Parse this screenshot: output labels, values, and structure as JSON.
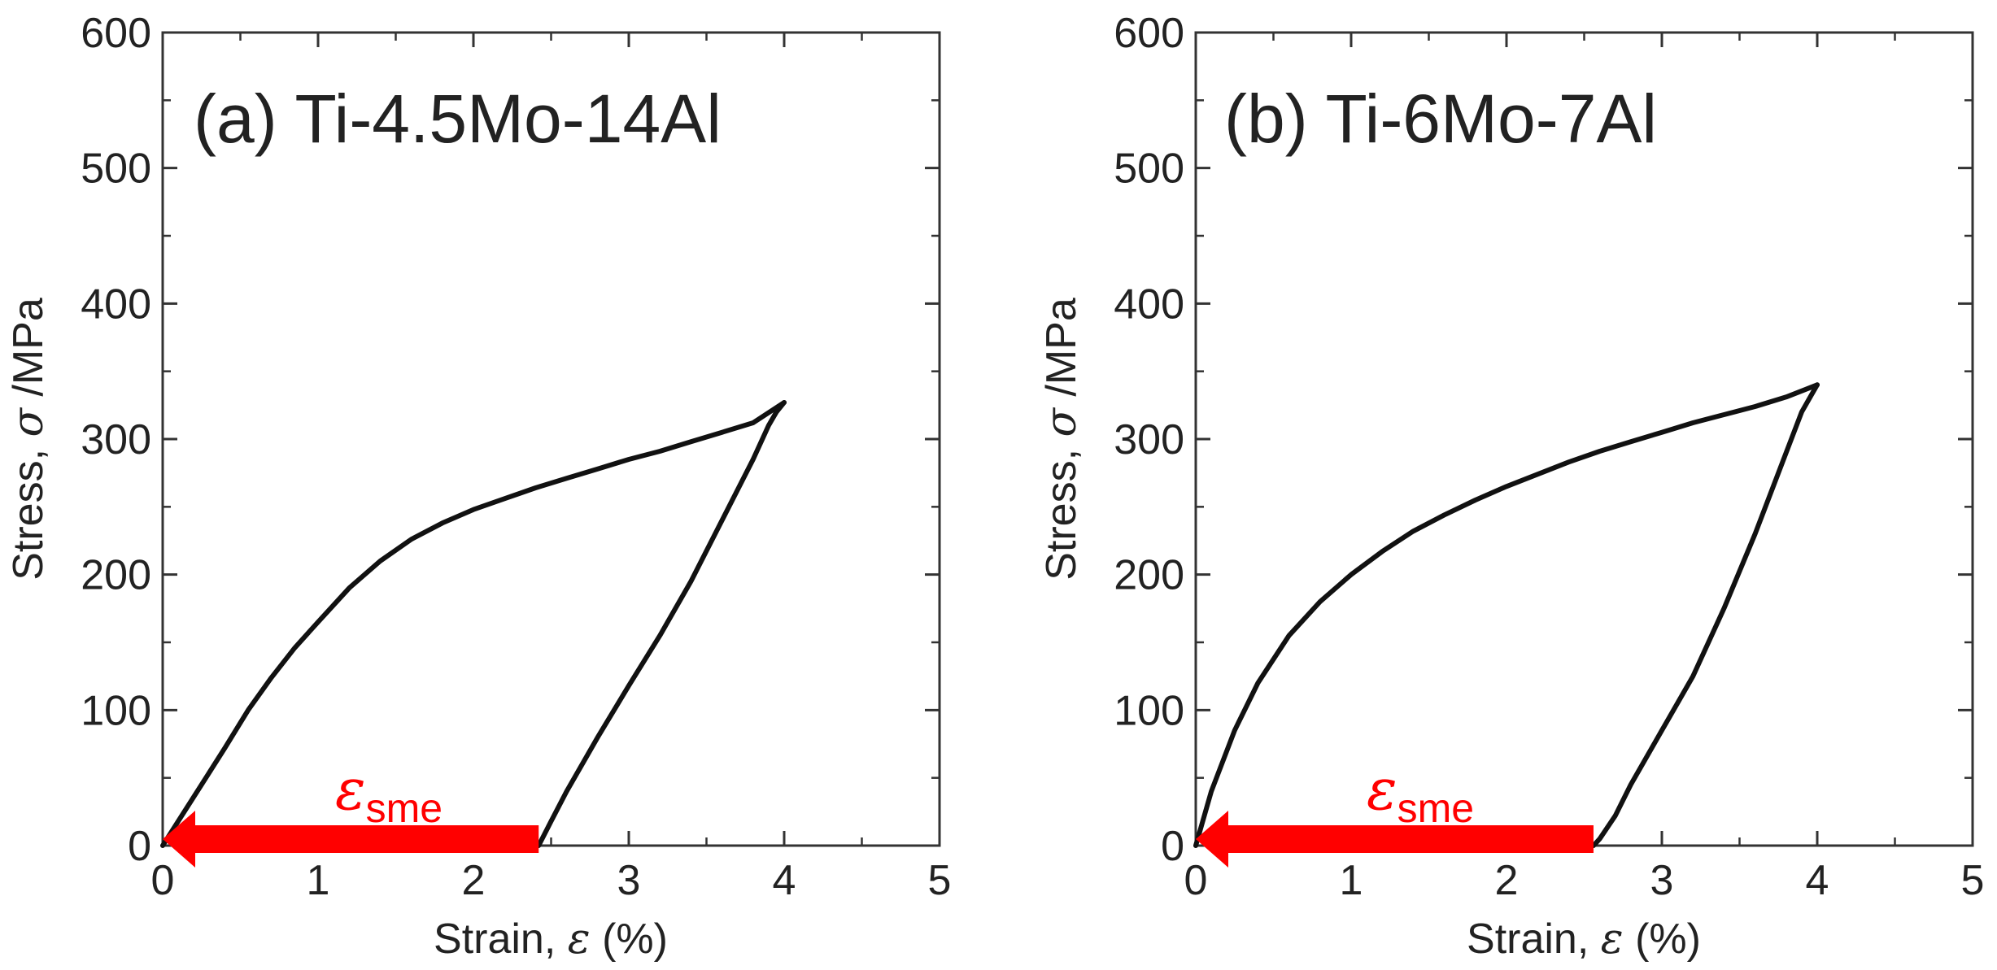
{
  "chart_data": [
    {
      "type": "line",
      "title": "(a) Ti-4.5Mo-14Al",
      "xlabel_prefix": "Strain, ",
      "xlabel_symbol": "ε",
      "xlabel_suffix": " (%)",
      "ylabel_prefix": "Stress, ",
      "ylabel_symbol": "σ",
      "ylabel_suffix": " /MPa",
      "xlim": [
        0,
        5
      ],
      "ylim": [
        0,
        600
      ],
      "xticks": [
        "0",
        "1",
        "2",
        "3",
        "4",
        "5"
      ],
      "yticks": [
        "0",
        "100",
        "200",
        "300",
        "400",
        "500",
        "600"
      ],
      "grid": false,
      "series": [
        {
          "name": "loading",
          "color": "#111111",
          "x": [
            0.0,
            0.1,
            0.25,
            0.4,
            0.55,
            0.7,
            0.85,
            1.0,
            1.2,
            1.4,
            1.6,
            1.8,
            2.0,
            2.2,
            2.4,
            2.6,
            2.8,
            3.0,
            3.2,
            3.4,
            3.6,
            3.8,
            4.0
          ],
          "y": [
            0,
            18,
            45,
            72,
            100,
            124,
            146,
            165,
            190,
            210,
            226,
            238,
            248,
            256,
            264,
            271,
            278,
            285,
            291,
            298,
            305,
            312,
            327
          ]
        },
        {
          "name": "unloading",
          "color": "#111111",
          "x": [
            4.0,
            3.95,
            3.9,
            3.8,
            3.6,
            3.4,
            3.2,
            3.0,
            2.8,
            2.6,
            2.5,
            2.42
          ],
          "y": [
            327,
            320,
            310,
            285,
            240,
            195,
            155,
            118,
            80,
            40,
            18,
            0
          ]
        }
      ],
      "annotations": [
        {
          "label": "ε",
          "subscript": "sme",
          "arrow_from": [
            2.42,
            0
          ],
          "arrow_to": [
            0.0,
            0
          ],
          "color": "#ff0000"
        }
      ]
    },
    {
      "type": "line",
      "title": "(b) Ti-6Mo-7Al",
      "xlabel_prefix": "Strain, ",
      "xlabel_symbol": "ε",
      "xlabel_suffix": " (%)",
      "ylabel_prefix": "Stress, ",
      "ylabel_symbol": "σ",
      "ylabel_suffix": " /MPa",
      "xlim": [
        0,
        5
      ],
      "ylim": [
        0,
        600
      ],
      "xticks": [
        "0",
        "1",
        "2",
        "3",
        "4",
        "5"
      ],
      "yticks": [
        "0",
        "100",
        "200",
        "300",
        "400",
        "500",
        "600"
      ],
      "grid": false,
      "series": [
        {
          "name": "loading",
          "color": "#111111",
          "x": [
            0.0,
            0.1,
            0.25,
            0.4,
            0.6,
            0.8,
            1.0,
            1.2,
            1.4,
            1.6,
            1.8,
            2.0,
            2.2,
            2.4,
            2.6,
            2.8,
            3.0,
            3.2,
            3.4,
            3.6,
            3.8,
            4.0
          ],
          "y": [
            0,
            40,
            85,
            120,
            155,
            180,
            200,
            217,
            232,
            244,
            255,
            265,
            274,
            283,
            291,
            298,
            305,
            312,
            318,
            324,
            331,
            340
          ]
        },
        {
          "name": "unloading",
          "color": "#111111",
          "x": [
            4.0,
            3.95,
            3.9,
            3.8,
            3.6,
            3.4,
            3.2,
            3.0,
            2.8,
            2.7,
            2.6,
            2.56
          ],
          "y": [
            340,
            330,
            320,
            290,
            230,
            175,
            125,
            85,
            45,
            22,
            5,
            0
          ]
        }
      ],
      "annotations": [
        {
          "label": "ε",
          "subscript": "sme",
          "arrow_from": [
            2.56,
            0
          ],
          "arrow_to": [
            0.0,
            0
          ],
          "color": "#ff0000"
        }
      ]
    }
  ]
}
